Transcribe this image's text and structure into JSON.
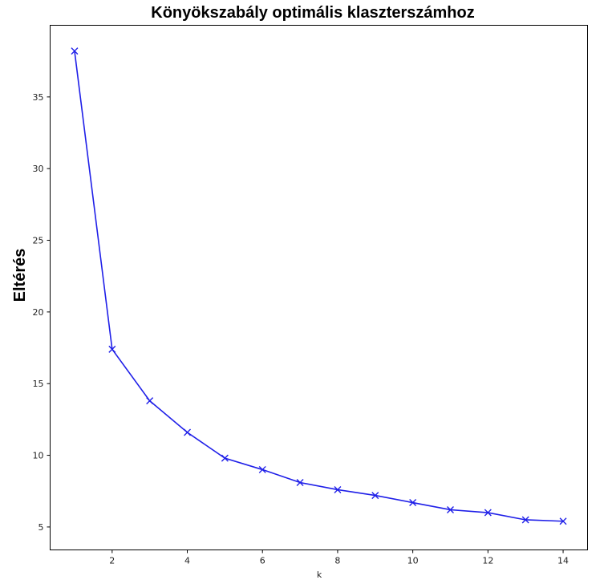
{
  "chart_data": {
    "type": "line",
    "title": "Könyökszabály optimális klaszterszámhoz",
    "xlabel": "k",
    "ylabel": "Eltérés",
    "x": [
      1,
      2,
      3,
      4,
      5,
      6,
      7,
      8,
      9,
      10,
      11,
      12,
      13,
      14
    ],
    "series": [
      {
        "values": [
          38.2,
          17.4,
          13.8,
          11.6,
          9.8,
          9.0,
          8.1,
          7.6,
          7.2,
          6.7,
          6.2,
          6.0,
          5.5,
          5.4
        ],
        "color": "#1f1fe8",
        "marker": "x"
      }
    ],
    "xlim": [
      0.35,
      14.65
    ],
    "ylim": [
      3.4,
      40.0
    ],
    "xticks": [
      2,
      4,
      6,
      8,
      10,
      12,
      14
    ],
    "yticks": [
      5,
      10,
      15,
      20,
      25,
      30,
      35
    ],
    "grid": false
  }
}
